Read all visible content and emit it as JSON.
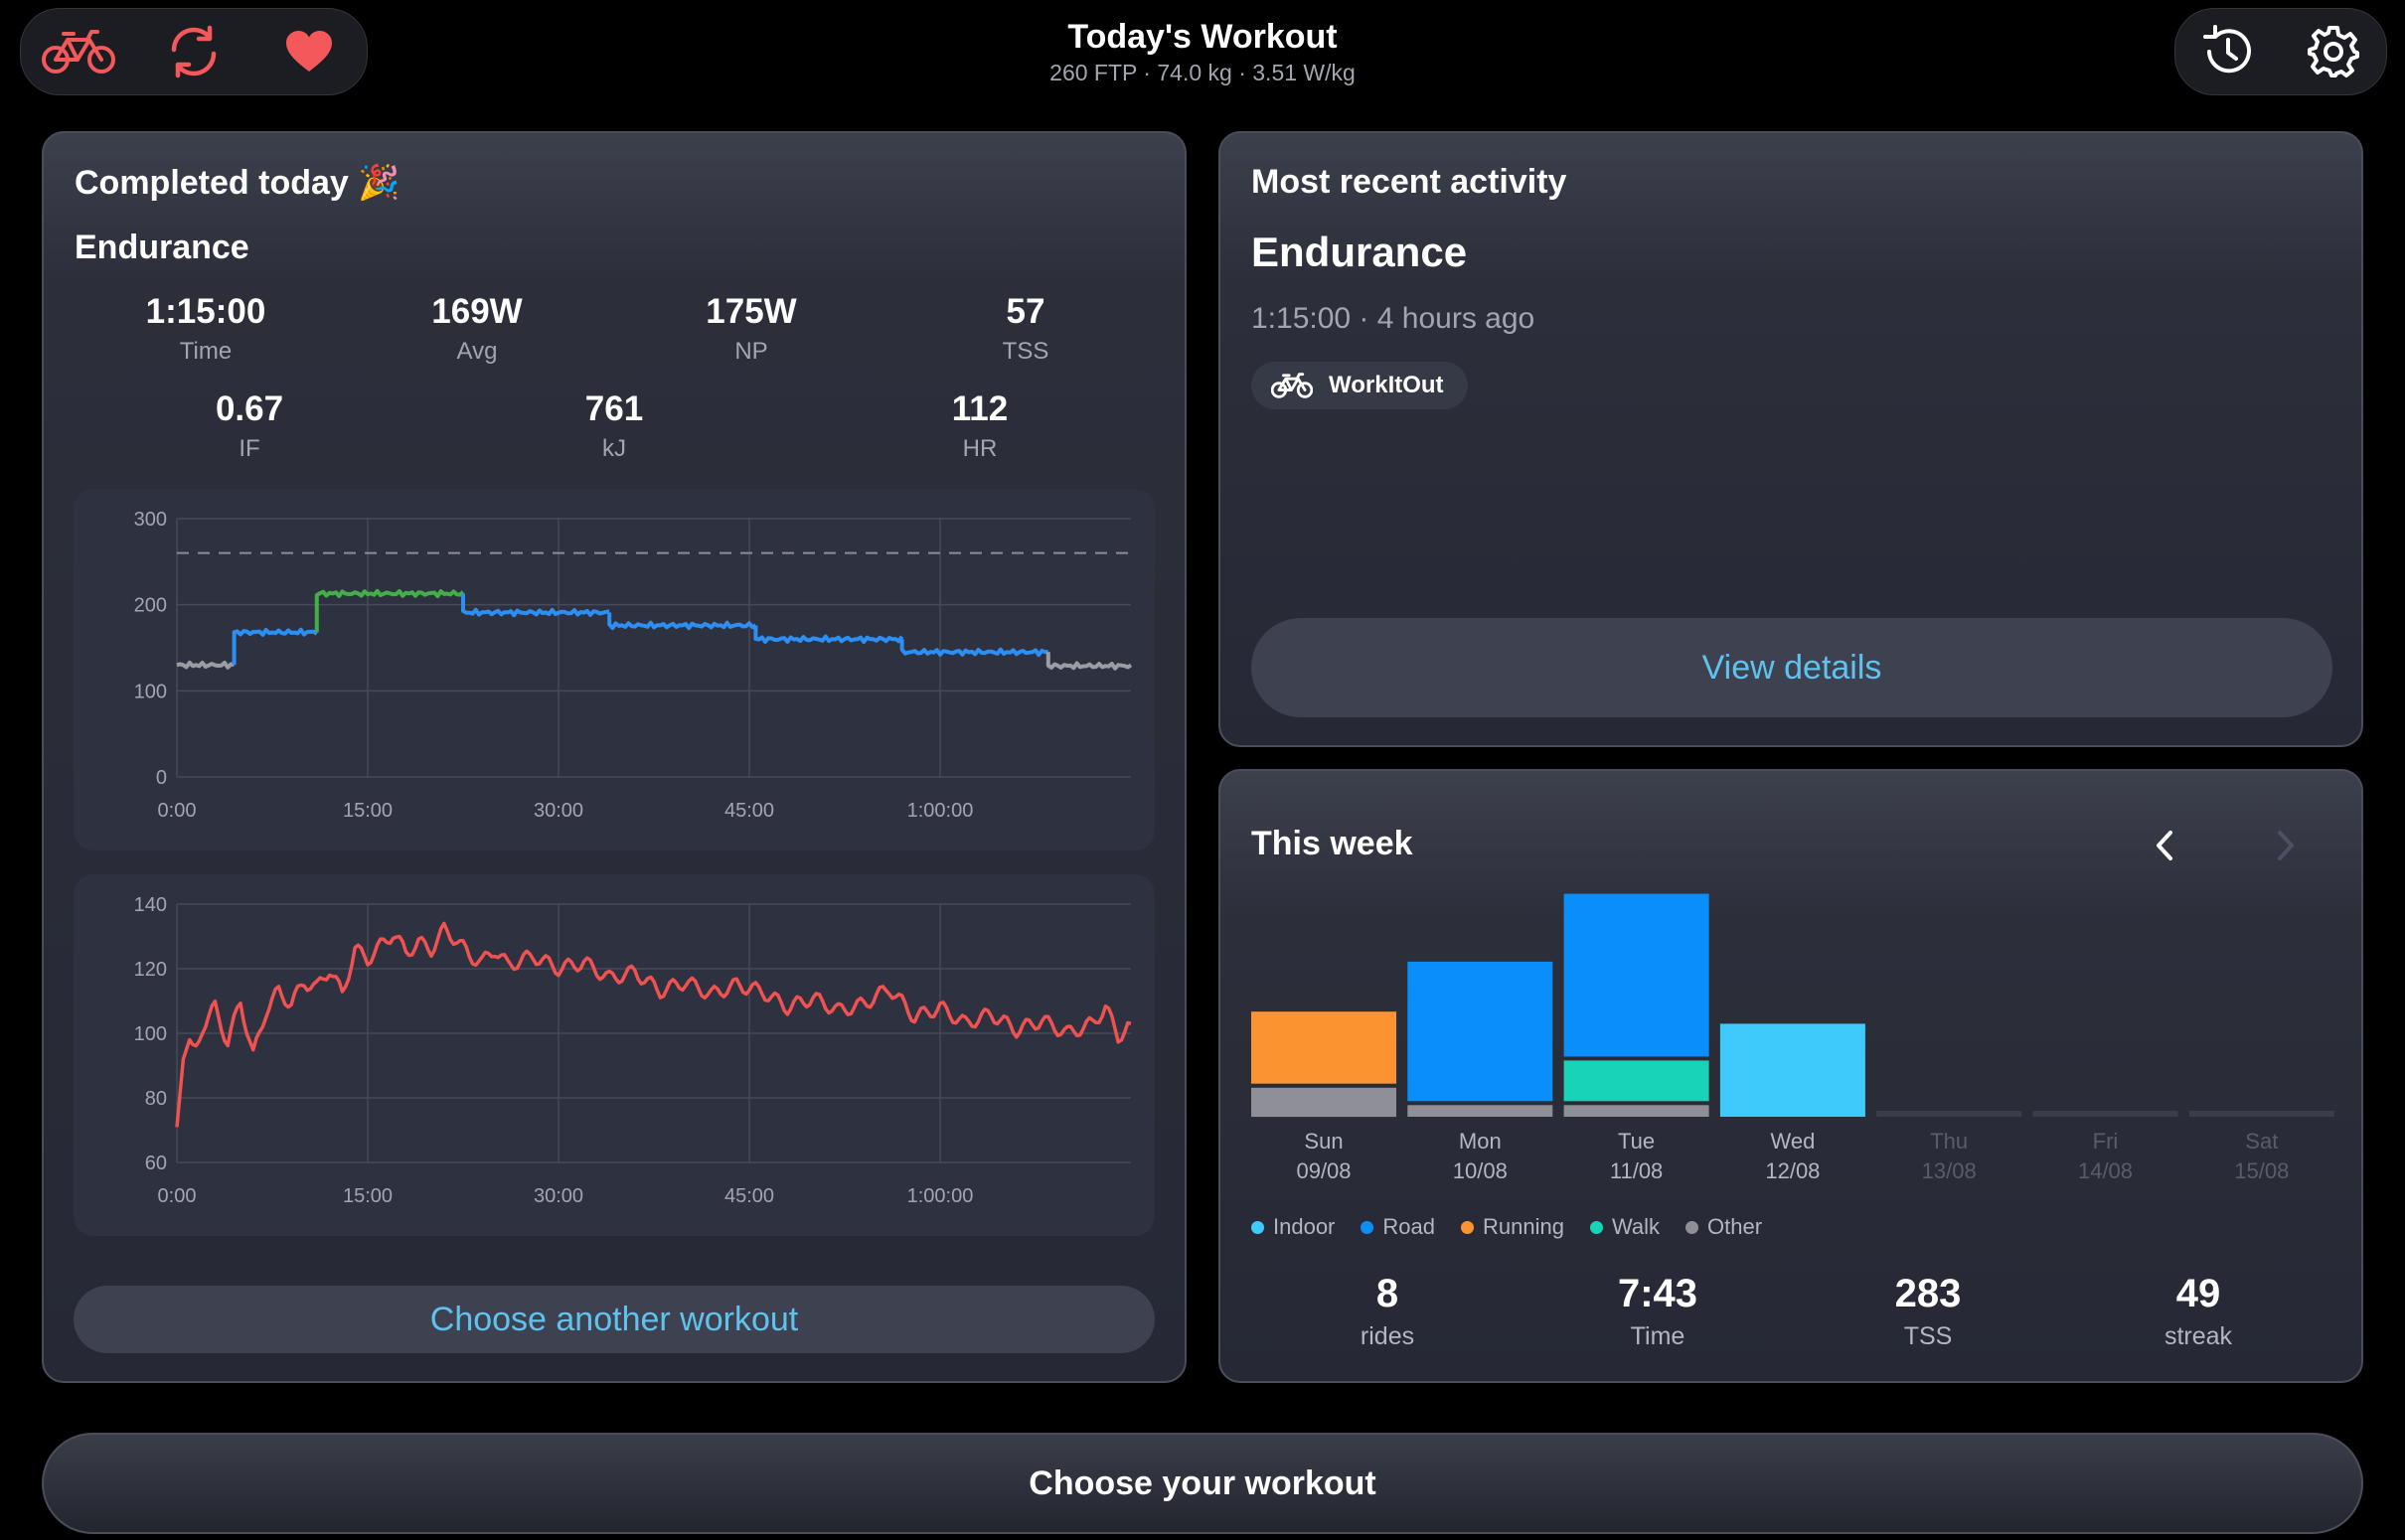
{
  "header": {
    "title": "Today's Workout",
    "subtitle": "260 FTP · 74.0 kg · 3.51 W/kg",
    "left_icons": [
      "bike-icon",
      "sync-icon",
      "heart-icon"
    ],
    "right_icons": [
      "history-icon",
      "gear-icon"
    ]
  },
  "completed": {
    "heading": "Completed today 🎉",
    "workout_name": "Endurance",
    "stats_row1": [
      {
        "value": "1:15:00",
        "label": "Time"
      },
      {
        "value": "169W",
        "label": "Avg"
      },
      {
        "value": "175W",
        "label": "NP"
      },
      {
        "value": "57",
        "label": "TSS"
      }
    ],
    "stats_row2": [
      {
        "value": "0.67",
        "label": "IF"
      },
      {
        "value": "761",
        "label": "kJ"
      },
      {
        "value": "112",
        "label": "HR"
      }
    ],
    "button_label": "Choose another workout"
  },
  "recent": {
    "heading": "Most recent activity",
    "workout_name": "Endurance",
    "meta": "1:15:00 · 4 hours ago",
    "source": "WorkItOut",
    "button_label": "View details"
  },
  "week": {
    "heading": "This week",
    "days": [
      {
        "day": "Sun",
        "date": "09/08",
        "active": true
      },
      {
        "day": "Mon",
        "date": "10/08",
        "active": true
      },
      {
        "day": "Tue",
        "date": "11/08",
        "active": true
      },
      {
        "day": "Wed",
        "date": "12/08",
        "active": true
      },
      {
        "day": "Thu",
        "date": "13/08",
        "active": false
      },
      {
        "day": "Fri",
        "date": "14/08",
        "active": false
      },
      {
        "day": "Sat",
        "date": "15/08",
        "active": false
      }
    ],
    "legend": [
      {
        "label": "Indoor",
        "color": "#3ecbfb"
      },
      {
        "label": "Road",
        "color": "#0a8ffa"
      },
      {
        "label": "Running",
        "color": "#fb9430"
      },
      {
        "label": "Walk",
        "color": "#18d3b8"
      },
      {
        "label": "Other",
        "color": "#8f9097"
      }
    ],
    "stats": [
      {
        "value": "8",
        "label": "rides"
      },
      {
        "value": "7:43",
        "label": "Time"
      },
      {
        "value": "283",
        "label": "TSS"
      },
      {
        "value": "49",
        "label": "streak"
      }
    ]
  },
  "footer": {
    "button_label": "Choose your workout"
  },
  "chart_data": [
    {
      "type": "line",
      "name": "power",
      "x_ticks": [
        "0:00",
        "15:00",
        "30:00",
        "45:00",
        "1:00:00"
      ],
      "x_tick_minutes": [
        0,
        15,
        30,
        45,
        60
      ],
      "xlim": [
        0,
        75
      ],
      "ylim": [
        0,
        300
      ],
      "y_ticks": [
        0,
        100,
        200,
        300
      ],
      "reference_line": 260,
      "grid": true,
      "segments": [
        {
          "start": 0,
          "end": 4.5,
          "watts": 130,
          "color": "#9a9da3"
        },
        {
          "start": 4.5,
          "end": 11,
          "watts": 168,
          "color": "#2b8ff3"
        },
        {
          "start": 11,
          "end": 22.5,
          "watts": 213,
          "color": "#43b047"
        },
        {
          "start": 22.5,
          "end": 34,
          "watts": 191,
          "color": "#2b8ff3"
        },
        {
          "start": 34,
          "end": 45.5,
          "watts": 176,
          "color": "#2b8ff3"
        },
        {
          "start": 45.5,
          "end": 57,
          "watts": 160,
          "color": "#2b8ff3"
        },
        {
          "start": 57,
          "end": 68.5,
          "watts": 145,
          "color": "#2b8ff3"
        },
        {
          "start": 68.5,
          "end": 75,
          "watts": 129,
          "color": "#9a9da3"
        }
      ]
    },
    {
      "type": "line",
      "name": "heart-rate",
      "x_ticks": [
        "0:00",
        "15:00",
        "30:00",
        "45:00",
        "1:00:00"
      ],
      "x_tick_minutes": [
        0,
        15,
        30,
        45,
        60
      ],
      "xlim": [
        0,
        75
      ],
      "ylim": [
        60,
        140
      ],
      "y_ticks": [
        60,
        80,
        100,
        120,
        140
      ],
      "grid": true,
      "color": "#f05252",
      "x": [
        0,
        0.5,
        1,
        1.5,
        2,
        3,
        4,
        5,
        6,
        7,
        8,
        9,
        10,
        11,
        12,
        13,
        14,
        15,
        16,
        17,
        18,
        19,
        20,
        21,
        22,
        23,
        24,
        25,
        26,
        28,
        30,
        32,
        34,
        36,
        38,
        40,
        42,
        44,
        46,
        48,
        50,
        52,
        54,
        56,
        58,
        60,
        62,
        64,
        66,
        68,
        70,
        72,
        73,
        74,
        75
      ],
      "y": [
        71,
        92,
        98,
        95,
        102,
        108,
        97,
        110,
        93,
        107,
        113,
        109,
        116,
        114,
        120,
        112,
        126,
        123,
        127,
        131,
        125,
        128,
        126,
        132,
        129,
        124,
        122,
        126,
        121,
        124,
        120,
        122,
        117,
        119,
        113,
        116,
        112,
        115,
        113,
        108,
        111,
        107,
        109,
        114,
        105,
        108,
        103,
        106,
        101,
        104,
        100,
        103,
        108,
        99,
        103
      ]
    },
    {
      "type": "bar",
      "name": "weekly-activity",
      "categories": [
        "Sun",
        "Mon",
        "Tue",
        "Wed",
        "Thu",
        "Fri",
        "Sat"
      ],
      "series": [
        {
          "name": "Other",
          "color": "#8f9097",
          "values": [
            0.25,
            0.1,
            0.1,
            0,
            0,
            0,
            0
          ]
        },
        {
          "name": "Walk",
          "color": "#18d3b8",
          "values": [
            0,
            0,
            0.35,
            0,
            0,
            0,
            0
          ]
        },
        {
          "name": "Running",
          "color": "#fb9430",
          "values": [
            0.62,
            0,
            0,
            0,
            0,
            0,
            0
          ]
        },
        {
          "name": "Road",
          "color": "#0a8ffa",
          "values": [
            0,
            1.2,
            1.4,
            0,
            0,
            0,
            0
          ]
        },
        {
          "name": "Indoor",
          "color": "#3ecbfb",
          "values": [
            0,
            0,
            0,
            0.8,
            0,
            0,
            0
          ]
        }
      ],
      "ylim": [
        0,
        2
      ]
    }
  ]
}
